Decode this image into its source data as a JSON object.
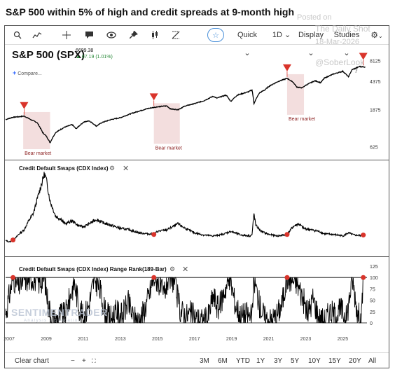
{
  "header": {
    "title": "S&P 500 within 5% of high and credit spreads at 9-month high"
  },
  "watermark": {
    "line1": "Posted on",
    "line2": "The Daily Shot",
    "line3": "18-Mar-2026",
    "line4": "@SoberLook"
  },
  "toolbar": {
    "search_icon": "magnifier",
    "indicator_icon": "chart-line",
    "crosshair_icon": "crosshair",
    "comment_icon": "speech-bubble",
    "eye_icon": "eye",
    "pin_icon": "pin",
    "candle_icon": "candlestick",
    "measure_icon": "ruler",
    "star_label": "☆",
    "quick_label": "Quick",
    "interval_label": "1D",
    "display_label": "Display",
    "studies_label": "Studies",
    "settings_icon": "gear"
  },
  "symbol": {
    "name": "S&P 500 (SPX)",
    "price": "6699.38",
    "change": "67.19 (1.01%)",
    "compare_label": "Compare..."
  },
  "panes": {
    "spx_label": "",
    "cdx_label": "Credit Default Swaps (CDX Index)",
    "rank_label": "Credit Default Swaps (CDX Index) Range Rank(189-Bar)"
  },
  "brand": {
    "name": "SENTIMENTRADER",
    "tagline": "Analysis · Education"
  },
  "bottom": {
    "clear_label": "Clear chart",
    "minus": "−",
    "plus": "+",
    "fit": "⛶",
    "ranges": [
      "3M",
      "6M",
      "YTD",
      "1Y",
      "3Y",
      "5Y",
      "10Y",
      "15Y",
      "20Y",
      "All"
    ]
  },
  "colors": {
    "marker": "#d9342b",
    "bear_shade": "#f3dede",
    "line": "#000000",
    "accent": "#2962ff"
  },
  "chart_data": [
    {
      "type": "line",
      "title": "S&P 500 (SPX)",
      "scale": "log",
      "y_ticks": [
        625,
        1875,
        4375,
        8125
      ],
      "x_ticks": [
        "2007",
        "2009",
        "2011",
        "2013",
        "2015",
        "2017",
        "2019",
        "2021",
        "2023",
        "2025"
      ],
      "x": [
        2006.8,
        2007.2,
        2007.5,
        2007.8,
        2008.2,
        2008.5,
        2008.8,
        2009.0,
        2009.2,
        2009.5,
        2010.0,
        2010.4,
        2010.6,
        2011.0,
        2011.3,
        2011.7,
        2012.0,
        2012.5,
        2013.0,
        2013.5,
        2014.0,
        2014.5,
        2015.0,
        2015.5,
        2015.7,
        2016.1,
        2016.5,
        2017.0,
        2017.5,
        2018.0,
        2018.2,
        2018.7,
        2018.95,
        2019.3,
        2019.9,
        2020.1,
        2020.2,
        2020.5,
        2020.8,
        2021.0,
        2021.5,
        2021.99,
        2022.3,
        2022.5,
        2022.8,
        2023.0,
        2023.5,
        2023.8,
        2024.0,
        2024.5,
        2025.0,
        2025.3,
        2025.5,
        2025.9,
        2026.2
      ],
      "y": [
        1400,
        1500,
        1520,
        1550,
        1380,
        1280,
        950,
        850,
        700,
        950,
        1120,
        1200,
        1060,
        1290,
        1350,
        1150,
        1280,
        1400,
        1480,
        1650,
        1800,
        1950,
        2050,
        2100,
        1920,
        1880,
        2100,
        2250,
        2450,
        2800,
        2650,
        2900,
        2400,
        2900,
        3200,
        3380,
        2250,
        3100,
        3400,
        3750,
        4350,
        4780,
        4300,
        3700,
        3600,
        3900,
        4450,
        4200,
        4800,
        5450,
        5900,
        5000,
        6200,
        6800,
        6700
      ],
      "annotations": [
        "Bear market",
        "Bear market",
        "Bear market",
        "?"
      ],
      "bear_periods": [
        [
          2007.75,
          2009.2
        ],
        [
          2014.8,
          2016.2
        ],
        [
          2021.99,
          2022.9
        ]
      ],
      "peak_markers": [
        2007.8,
        2014.8,
        2021.99,
        2026.1
      ]
    },
    {
      "type": "line",
      "title": "Credit Default Swaps (CDX Index)",
      "x": [
        2006.8,
        2007.0,
        2007.3,
        2007.5,
        2007.8,
        2008.0,
        2008.3,
        2008.5,
        2008.75,
        2008.9,
        2009.0,
        2009.2,
        2009.5,
        2009.8,
        2010.0,
        2010.4,
        2010.7,
        2011.0,
        2011.3,
        2011.7,
        2012.0,
        2012.5,
        2013.0,
        2013.5,
        2014.0,
        2014.5,
        2014.8,
        2015.0,
        2015.5,
        2016.1,
        2016.5,
        2017.0,
        2017.5,
        2018.0,
        2018.5,
        2018.95,
        2019.5,
        2020.0,
        2020.1,
        2020.2,
        2020.3,
        2020.6,
        2021.0,
        2021.5,
        2021.99,
        2022.3,
        2022.6,
        2022.9,
        2023.3,
        2023.7,
        2024.0,
        2024.5,
        2025.0,
        2025.3,
        2025.6,
        2026.0,
        2026.2
      ],
      "y": [
        40,
        35,
        45,
        60,
        75,
        100,
        130,
        175,
        230,
        260,
        240,
        170,
        120,
        110,
        95,
        105,
        90,
        85,
        95,
        110,
        100,
        90,
        80,
        75,
        65,
        62,
        60,
        70,
        75,
        95,
        80,
        65,
        58,
        55,
        60,
        70,
        58,
        55,
        60,
        130,
        90,
        70,
        60,
        55,
        60,
        85,
        95,
        80,
        75,
        70,
        62,
        60,
        55,
        65,
        58,
        56,
        60
      ],
      "peak_markers": [
        2007.2,
        2014.8,
        2021.99,
        2026.1
      ]
    },
    {
      "type": "line",
      "title": "Credit Default Swaps (CDX Index) Range Rank(189-Bar)",
      "y_ticks": [
        0,
        25,
        50,
        75,
        100,
        125
      ],
      "ylim": [
        0,
        125
      ],
      "x": [
        2006.8,
        2007.0,
        2007.2,
        2007.5,
        2007.8,
        2008.0,
        2008.3,
        2008.6,
        2008.9,
        2009.1,
        2009.3,
        2009.5,
        2009.8,
        2010.0,
        2010.3,
        2010.5,
        2010.8,
        2011.0,
        2011.3,
        2011.6,
        2011.9,
        2012.2,
        2012.5,
        2012.8,
        2013.1,
        2013.4,
        2013.7,
        2014.0,
        2014.3,
        2014.6,
        2014.8,
        2015.0,
        2015.3,
        2015.6,
        2015.9,
        2016.2,
        2016.5,
        2016.8,
        2017.1,
        2017.4,
        2017.7,
        2018.0,
        2018.3,
        2018.6,
        2018.9,
        2019.2,
        2019.5,
        2019.8,
        2020.1,
        2020.2,
        2020.5,
        2020.8,
        2021.1,
        2021.4,
        2021.7,
        2021.99,
        2022.2,
        2022.5,
        2022.8,
        2023.1,
        2023.4,
        2023.7,
        2024.0,
        2024.3,
        2024.6,
        2024.9,
        2025.2,
        2025.5,
        2025.8,
        2026.0,
        2026.1
      ],
      "y": [
        20,
        60,
        100,
        80,
        100,
        95,
        100,
        90,
        100,
        40,
        10,
        5,
        20,
        15,
        60,
        90,
        30,
        10,
        40,
        100,
        70,
        20,
        10,
        25,
        15,
        45,
        10,
        5,
        30,
        70,
        100,
        95,
        60,
        100,
        95,
        30,
        15,
        20,
        10,
        5,
        8,
        60,
        30,
        70,
        100,
        40,
        15,
        20,
        10,
        100,
        40,
        10,
        5,
        15,
        40,
        100,
        95,
        90,
        60,
        20,
        55,
        10,
        5,
        25,
        15,
        30,
        10,
        100,
        20,
        5,
        100
      ],
      "peak_markers": [
        2007.2,
        2014.8,
        2021.99,
        2026.1
      ]
    }
  ]
}
